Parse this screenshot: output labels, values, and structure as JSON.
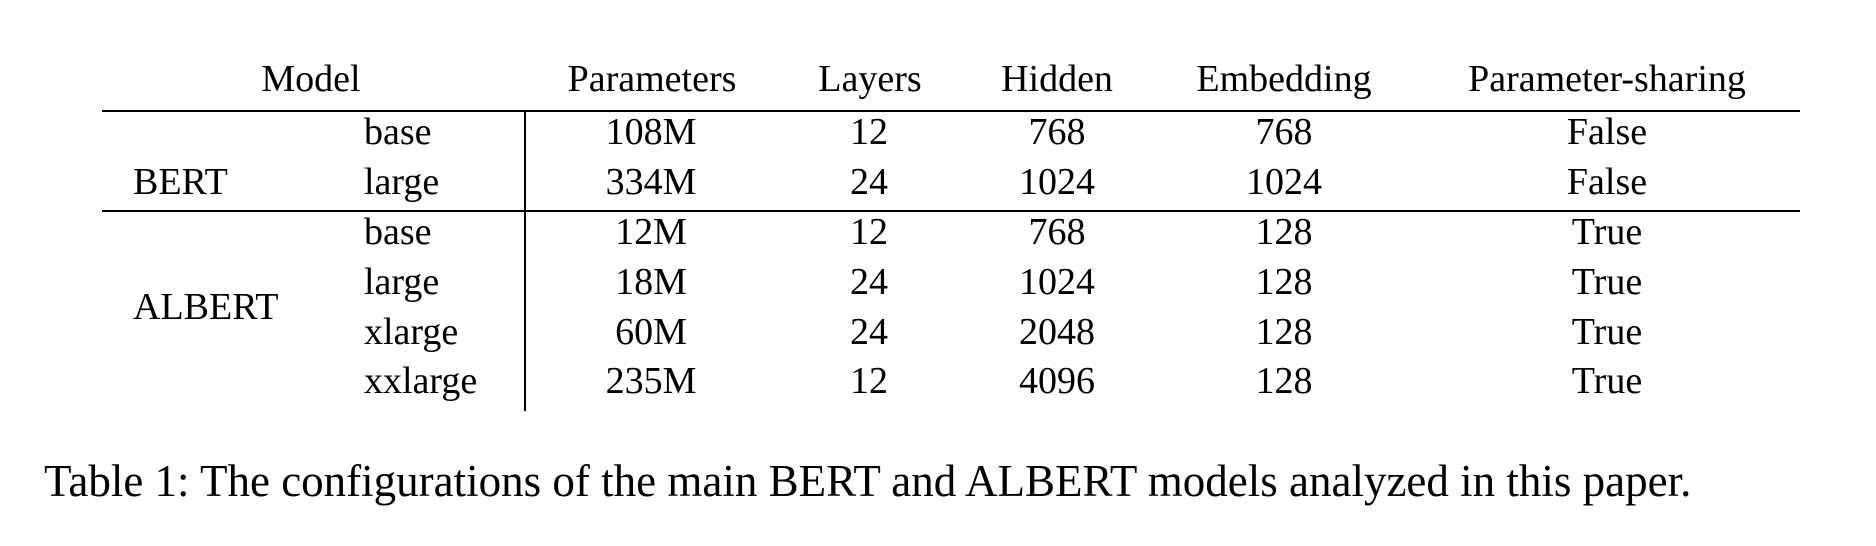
{
  "table": {
    "header": {
      "model": "Model",
      "parameters": "Parameters",
      "layers": "Layers",
      "hidden": "Hidden",
      "embedding": "Embedding",
      "sharing": "Parameter-sharing"
    },
    "groups": [
      {
        "name": "BERT",
        "rows": [
          {
            "size": "base",
            "parameters": "108M",
            "layers": "12",
            "hidden": "768",
            "embedding": "768",
            "sharing": "False"
          },
          {
            "size": "large",
            "parameters": "334M",
            "layers": "24",
            "hidden": "1024",
            "embedding": "1024",
            "sharing": "False"
          }
        ]
      },
      {
        "name": "ALBERT",
        "rows": [
          {
            "size": "base",
            "parameters": "12M",
            "layers": "12",
            "hidden": "768",
            "embedding": "128",
            "sharing": "True"
          },
          {
            "size": "large",
            "parameters": "18M",
            "layers": "24",
            "hidden": "1024",
            "embedding": "128",
            "sharing": "True"
          },
          {
            "size": "xlarge",
            "parameters": "60M",
            "layers": "24",
            "hidden": "2048",
            "embedding": "128",
            "sharing": "True"
          },
          {
            "size": "xxlarge",
            "parameters": "235M",
            "layers": "12",
            "hidden": "4096",
            "embedding": "128",
            "sharing": "True"
          }
        ]
      }
    ]
  },
  "caption": "Table 1: The configurations of the main BERT and ALBERT models analyzed in this paper."
}
